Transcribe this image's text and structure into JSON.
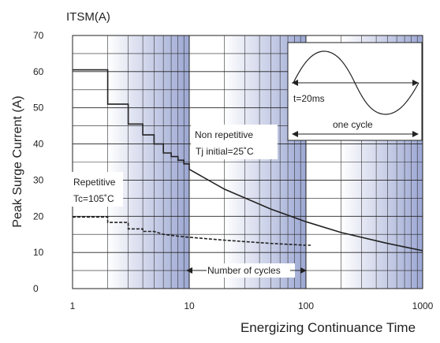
{
  "chart_data": {
    "type": "line",
    "unit_label": "ITSM(A)",
    "ylabel": "Peak Surge Current (A)",
    "xlabel": "Energizing Continuance Time",
    "x_scale": "log",
    "xlim": [
      1,
      1000
    ],
    "ylim": [
      0,
      70
    ],
    "y_ticks": [
      "0",
      "10",
      "20",
      "30",
      "40",
      "50",
      "60",
      "70"
    ],
    "x_ticks": [
      "1",
      "10",
      "100",
      "1000"
    ],
    "grid": true,
    "series": [
      {
        "name": "Non repetitive",
        "style": "solid",
        "color": "#222222",
        "points": [
          [
            1,
            60.5
          ],
          [
            2,
            60.5
          ],
          [
            2,
            51
          ],
          [
            3,
            51
          ],
          [
            3,
            45.5
          ],
          [
            4,
            45.5
          ],
          [
            4,
            42.5
          ],
          [
            5,
            42.5
          ],
          [
            5,
            40
          ],
          [
            6,
            40
          ],
          [
            6,
            37.5
          ],
          [
            7,
            37.5
          ],
          [
            7,
            36.5
          ],
          [
            8,
            36.5
          ],
          [
            8,
            35.5
          ],
          [
            9,
            35.5
          ],
          [
            9,
            34.5
          ],
          [
            10,
            34.5
          ],
          [
            10,
            33
          ],
          [
            20,
            27.5
          ],
          [
            50,
            22
          ],
          [
            100,
            18.5
          ],
          [
            200,
            15.5
          ],
          [
            500,
            12.5
          ],
          [
            1000,
            10.5
          ]
        ]
      },
      {
        "name": "Repetitive",
        "style": "dashed",
        "color": "#222222",
        "points": [
          [
            1,
            19.8
          ],
          [
            2,
            19.8
          ],
          [
            2,
            18.3
          ],
          [
            3,
            18.3
          ],
          [
            3,
            16.5
          ],
          [
            4,
            16.5
          ],
          [
            4,
            15.8
          ],
          [
            5,
            15.8
          ],
          [
            6,
            15
          ],
          [
            8,
            14.5
          ],
          [
            10,
            14.2
          ],
          [
            20,
            13.4
          ],
          [
            50,
            12.5
          ],
          [
            100,
            12
          ],
          [
            110,
            12
          ]
        ]
      }
    ],
    "annotations": {
      "non_repetitive_line1": "Non repetitive",
      "non_repetitive_line2": "Tj initial=25˚C",
      "repetitive_line1": "Repetitive",
      "repetitive_line2": "Tc=105˚C",
      "cycles_label": "Number of cycles",
      "inset_period": "t=20ms",
      "inset_cycle": "one cycle"
    }
  }
}
